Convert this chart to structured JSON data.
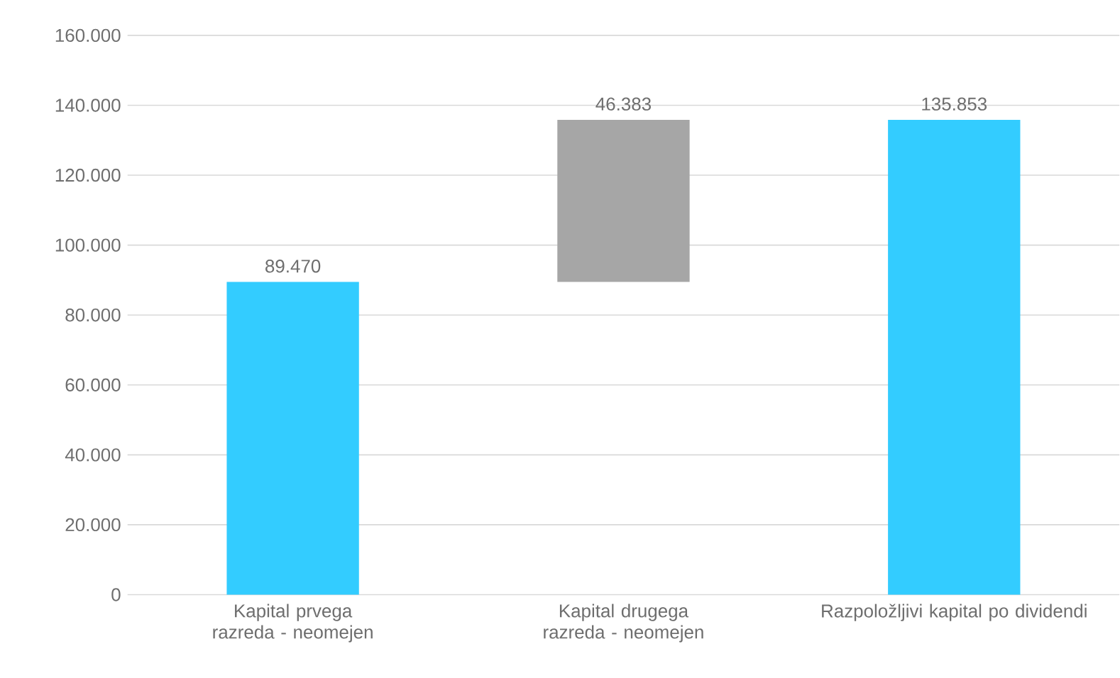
{
  "chart_data": {
    "type": "bar",
    "categories": [
      "Kapital prvega razreda - neomejen",
      "Kapital drugega razreda - neomejen",
      "Razpoložljivi kapital po dividendi"
    ],
    "values": [
      89470,
      46383,
      135853
    ],
    "base": [
      0,
      89470,
      0
    ],
    "colors": [
      "#33ccff",
      "#a6a6a6",
      "#33ccff"
    ],
    "value_labels": [
      "89.470",
      "46.383",
      "135.853"
    ],
    "ylim": [
      0,
      160000
    ],
    "yticks": [
      0,
      {
        "value": 20000,
        "label": "20.000"
      },
      {
        "value": 40000,
        "label": "40.000"
      },
      {
        "value": 60000,
        "label": "60.000"
      },
      {
        "value": 80000,
        "label": "80.000"
      },
      {
        "value": 100000,
        "label": "100.000"
      },
      {
        "value": 120000,
        "label": "120.000"
      },
      {
        "value": 140000,
        "label": "140.000"
      },
      {
        "value": 160000,
        "label": "160.000"
      }
    ],
    "grid": "y"
  }
}
